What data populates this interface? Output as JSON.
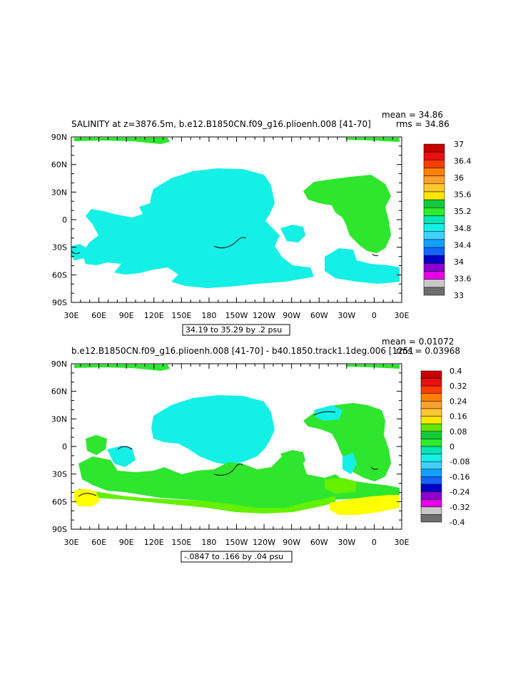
{
  "chart_data": [
    {
      "type": "heatmap",
      "title": "SALINITY at z=3876.5m, b.e12.B1850CN.f09_g16.plioenh.008  [41-70]",
      "stats": [
        "mean = 34.86",
        "rms = 34.86"
      ],
      "x_ticks": [
        "30E",
        "60E",
        "90E",
        "120E",
        "150E",
        "180",
        "150W",
        "120W",
        "90W",
        "60W",
        "30W",
        "0",
        "30E"
      ],
      "y_ticks": [
        "90N",
        "60N",
        "30N",
        "0",
        "30S",
        "60S",
        "90S"
      ],
      "contour_info": "34.19 to 35.29 by .2 psu",
      "colorbar_labels": [
        "37",
        "36.4",
        "36",
        "35.6",
        "35.2",
        "34.8",
        "34.4",
        "34",
        "33.6",
        "33"
      ],
      "colorbar_colors": [
        "#c80000",
        "#e81010",
        "#ff3c00",
        "#ff8000",
        "#ffa030",
        "#ffc830",
        "#ffe600",
        "#14c83c",
        "#2eec2e",
        "#00e6b4",
        "#14f0e6",
        "#40d0ff",
        "#14a0ff",
        "#1464ff",
        "#0000c8",
        "#8c00d2",
        "#e600e6",
        "#c8c8c8",
        "#6e6e6e"
      ],
      "field_colors": {
        "main": "#14f0e6",
        "atlantic": "#2ee62e",
        "arctic": "#2ee62e",
        "contour": "#000000"
      }
    },
    {
      "type": "heatmap",
      "title": "b.e12.B1850CN.f09_g16.plioenh.008  [41-70]  -  b40.1850.track1.1deg.006  [1251",
      "stats": [
        "mean = 0.01072",
        "rms = 0.03968"
      ],
      "x_ticks": [
        "30E",
        "60E",
        "90E",
        "120E",
        "150E",
        "180",
        "150W",
        "120W",
        "90W",
        "60W",
        "30W",
        "0",
        "30E"
      ],
      "y_ticks": [
        "90N",
        "60N",
        "30N",
        "0",
        "30S",
        "60S",
        "90S"
      ],
      "contour_info": "-.0847 to .166 by .04 psu",
      "colorbar_labels": [
        "0.4",
        "0.32",
        "0.24",
        "0.16",
        "0.08",
        "0",
        "-0.08",
        "-0.16",
        "-0.24",
        "-0.32",
        "-0.4"
      ],
      "colorbar_colors": [
        "#c80000",
        "#e81010",
        "#ff3c00",
        "#ff8000",
        "#ffa030",
        "#ffc830",
        "#ffe600",
        "#64e600",
        "#14c83c",
        "#2eec2e",
        "#00e6b4",
        "#14f0e6",
        "#40d0ff",
        "#14a0ff",
        "#1464ff",
        "#0000c8",
        "#8c00d2",
        "#e600e6",
        "#c8c8c8",
        "#6e6e6e"
      ],
      "field_colors": {
        "main": "#14f0e6",
        "green": "#2ee62e",
        "lime": "#64f000",
        "yellow": "#ffff00",
        "contour": "#000000"
      }
    }
  ]
}
